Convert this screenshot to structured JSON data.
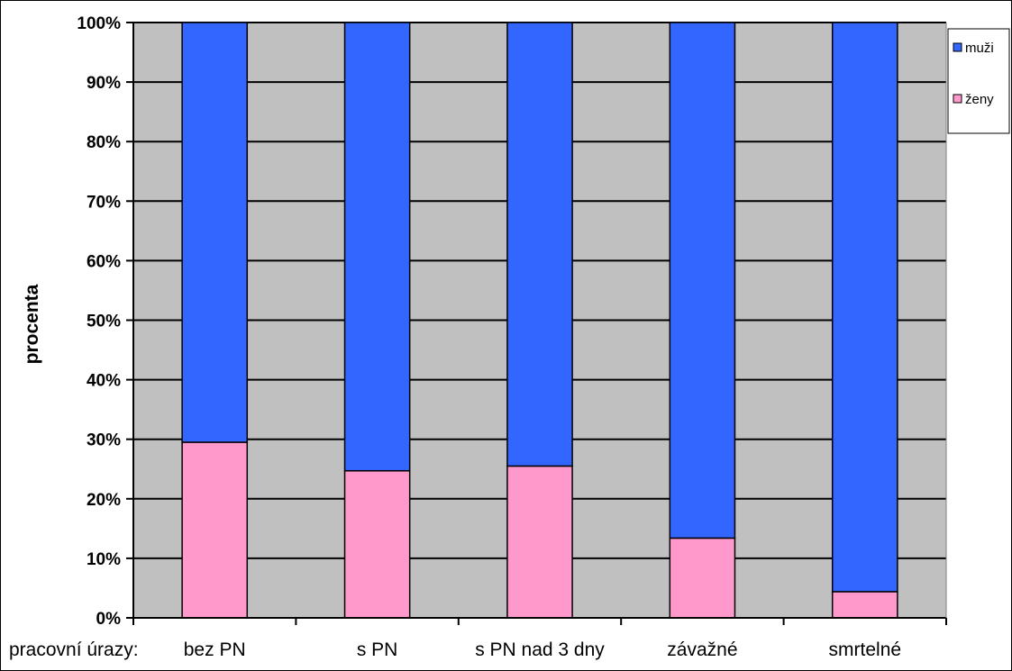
{
  "chart_data": {
    "type": "bar",
    "stacked": true,
    "percent_stacked": true,
    "xlabel": "pracovní úrazy:",
    "ylabel": "procenta",
    "categories": [
      "bez PN",
      "s PN",
      "s PN nad 3 dny",
      "závažné",
      "smrtelné"
    ],
    "series": [
      {
        "name": "ženy",
        "color": "#ff99cc",
        "values": [
          29.5,
          24.7,
          25.5,
          13.4,
          4.4
        ]
      },
      {
        "name": "muži",
        "color": "#3366ff",
        "values": [
          70.5,
          75.3,
          74.5,
          86.6,
          95.6
        ]
      }
    ],
    "yticks": [
      "0%",
      "10%",
      "20%",
      "30%",
      "40%",
      "50%",
      "60%",
      "70%",
      "80%",
      "90%",
      "100%"
    ],
    "ylim": [
      0,
      100
    ],
    "grid": true,
    "plot_background": "#c0c0c0",
    "legend": {
      "placement": "right",
      "entries": [
        "muži",
        "ženy"
      ]
    }
  }
}
